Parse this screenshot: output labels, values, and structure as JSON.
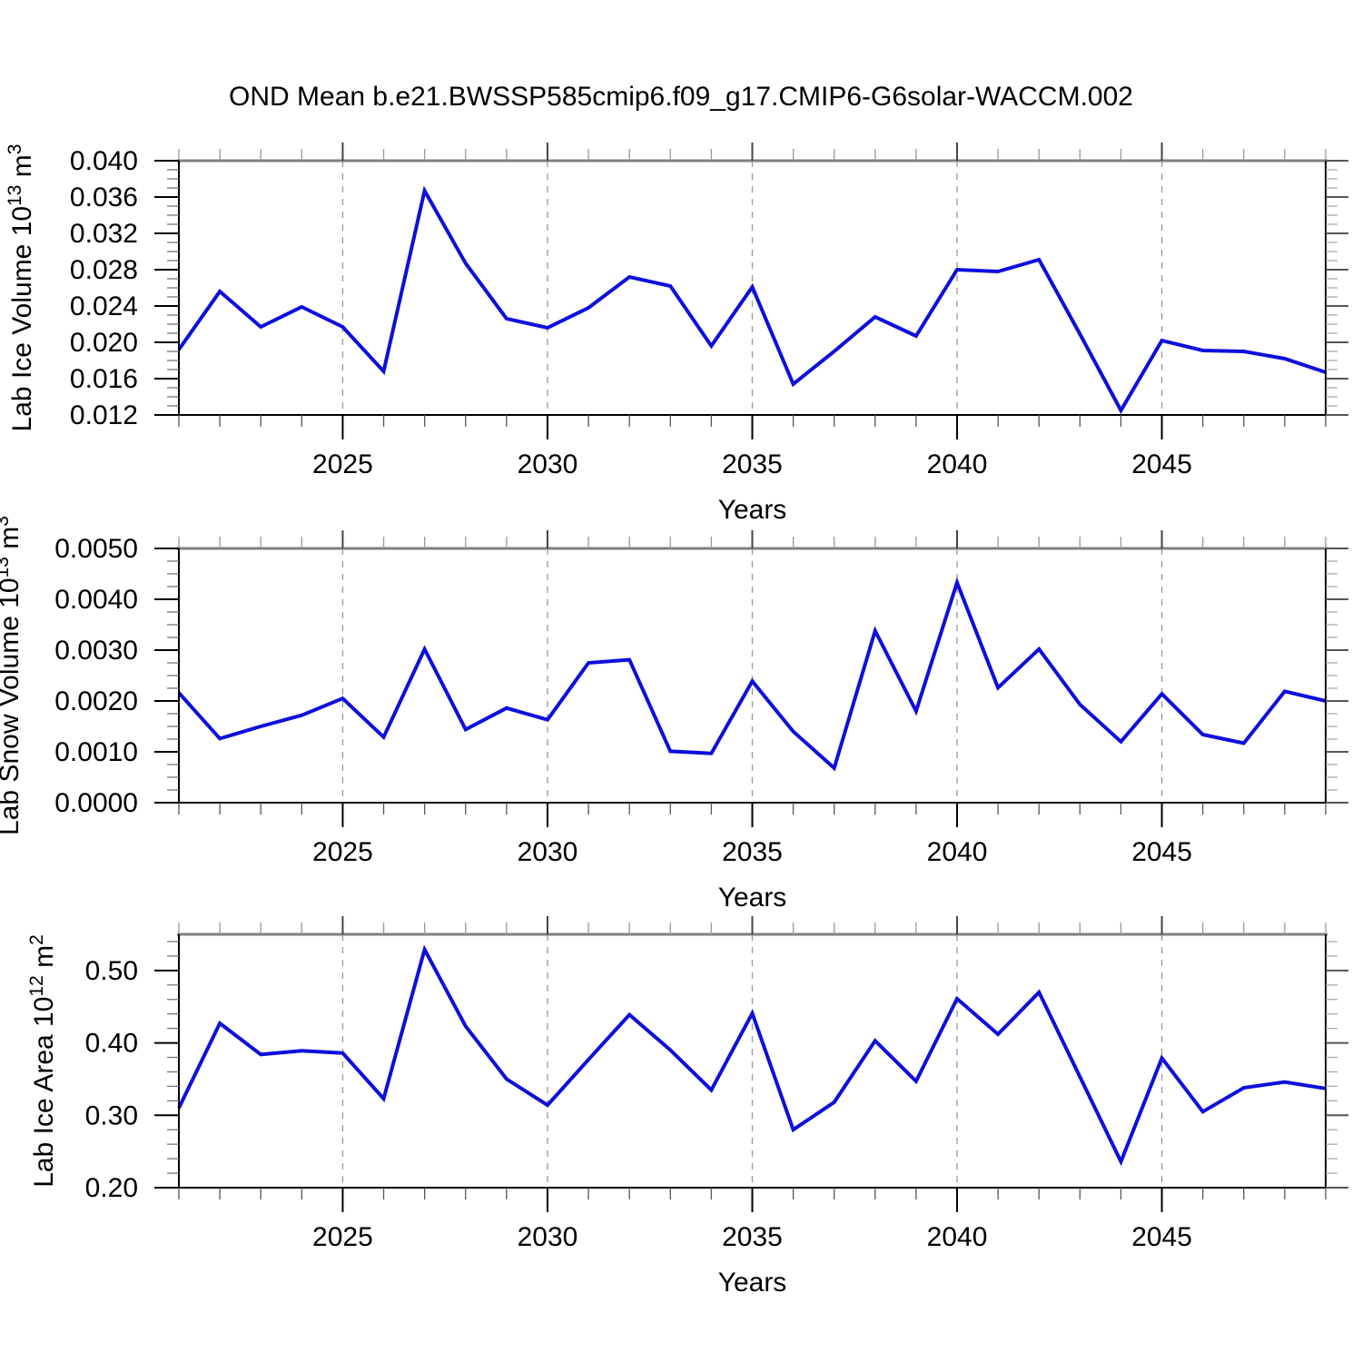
{
  "title": "OND Mean b.e21.BWSSP585cmip6.f09_g17.CMIP6-G6solar-WACCM.002",
  "line_color": "#0e0edd",
  "gridline_color": "#999999",
  "x_axis": {
    "label": "Years",
    "min": 2021,
    "max": 2049,
    "major_ticks": [
      2025,
      2030,
      2035,
      2040,
      2045
    ],
    "minor_step": 1,
    "years": [
      2021,
      2022,
      2023,
      2024,
      2025,
      2026,
      2027,
      2028,
      2029,
      2030,
      2031,
      2032,
      2033,
      2034,
      2035,
      2036,
      2037,
      2038,
      2039,
      2040,
      2041,
      2042,
      2043,
      2044,
      2045,
      2046,
      2047,
      2048,
      2049
    ]
  },
  "chart_data": [
    {
      "type": "line",
      "name": "lab-ice-volume",
      "ylabel": "Lab Ice Volume 10^13 m^3",
      "ylim": [
        0.012,
        0.04
      ],
      "ytick_major": 0.004,
      "ytick_minor": 0.001,
      "ytick_labels": [
        "0.012",
        "0.016",
        "0.020",
        "0.024",
        "0.028",
        "0.032",
        "0.036",
        "0.040"
      ],
      "grid": true,
      "legend": "none",
      "values": [
        0.0192,
        0.0256,
        0.0217,
        0.0239,
        0.0217,
        0.0168,
        0.0367,
        0.0287,
        0.0226,
        0.0216,
        0.0238,
        0.0272,
        0.0262,
        0.0196,
        0.0261,
        0.0154,
        0.019,
        0.0228,
        0.0207,
        0.028,
        0.0278,
        0.0291,
        0.0209,
        0.0125,
        0.0202,
        0.0191,
        0.019,
        0.0182,
        0.0167
      ]
    },
    {
      "type": "line",
      "name": "lab-snow-volume",
      "ylabel": "Lab Snow Volume 10^13 m^3",
      "ylim": [
        0.0,
        0.005
      ],
      "ytick_major": 0.001,
      "ytick_minor": 0.00025,
      "ytick_labels": [
        "0.0000",
        "0.0010",
        "0.0020",
        "0.0030",
        "0.0040",
        "0.0050"
      ],
      "grid": true,
      "legend": "none",
      "values": [
        0.00216,
        0.00126,
        0.0015,
        0.00172,
        0.00205,
        0.00129,
        0.00302,
        0.00144,
        0.00186,
        0.00163,
        0.00275,
        0.00281,
        0.00101,
        0.00097,
        0.00239,
        0.0014,
        0.00068,
        0.00338,
        0.0018,
        0.00433,
        0.00226,
        0.00302,
        0.00193,
        0.0012,
        0.00214,
        0.00134,
        0.00117,
        0.00219,
        0.002
      ]
    },
    {
      "type": "line",
      "name": "lab-ice-area",
      "ylabel": "Lab Ice Area 10^12 m^2",
      "ylim": [
        0.2,
        0.55
      ],
      "ytick_major": 0.1,
      "ytick_minor": 0.02,
      "ytick_labels": [
        "0.20",
        "0.30",
        "0.40",
        "0.50"
      ],
      "grid": true,
      "legend": "none",
      "values": [
        0.31,
        0.427,
        0.384,
        0.389,
        0.386,
        0.323,
        0.529,
        0.423,
        0.35,
        0.314,
        0.377,
        0.439,
        0.39,
        0.335,
        0.441,
        0.28,
        0.318,
        0.403,
        0.347,
        0.461,
        0.412,
        0.47,
        0.353,
        0.236,
        0.379,
        0.305,
        0.338,
        0.346,
        0.337
      ]
    }
  ]
}
